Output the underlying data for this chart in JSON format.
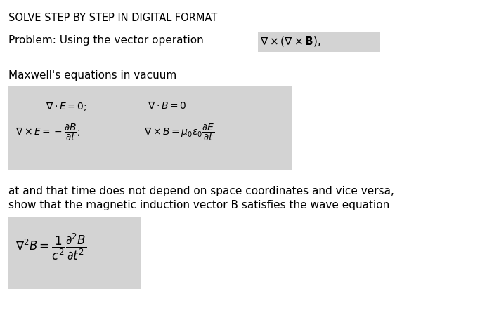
{
  "bg_color": "#ffffff",
  "title_text": "SOLVE STEP BY STEP IN DIGITAL FORMAT",
  "problem_plain": "Problem: Using the vector operation ",
  "maxwell_label": "Maxwell's equations in vacuum",
  "eq_box_color": "#d3d3d3",
  "highlight_color": "#d3d3d3",
  "body_text1": "at and that time does not depend on space coordinates and vice versa,",
  "body_text2": "show that the magnetic induction vector B satisfies the wave equation",
  "title_fontsize": 10.5,
  "problem_fontsize": 11,
  "maxwell_fontsize": 11,
  "eq_fontsize": 10,
  "body_fontsize": 11,
  "wave_fontsize": 11,
  "fig_width": 6.83,
  "fig_height": 4.6,
  "dpi": 100
}
